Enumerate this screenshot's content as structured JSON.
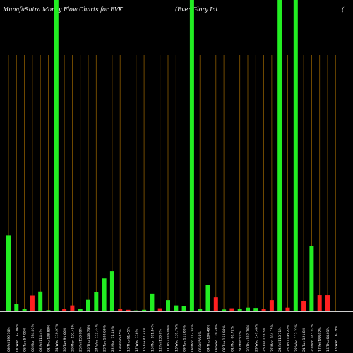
{
  "chart_data": {
    "type": "bar",
    "title_left": "MunafaSutra  Money Flow  Charts for EVK",
    "title_right": "(Ever Glory Int",
    "title_far": "(",
    "categories": [
      "09 Fri 195.76%",
      "07 Wed 142.08%",
      "06 Tue 57.09%",
      "05 Mon 194.05%",
      "02 Fri 114.4%",
      "01 Thu 138.89%",
      "31 Wed 119.97%",
      "30 Tue 91.66%",
      "29 Mon 120.45%",
      "26 Fri 158.08%",
      "25 Thu 103.73%",
      "24 Wed 113.44%",
      "23 Tue 180.69%",
      "22 Mon 71.46%",
      "19 Fri 96.65%",
      "18 Thu 61.45%",
      "17 Wed 116%",
      "16 Tue 47.37%",
      "15 Mon 101.84%",
      "12 Fri 138.6%",
      "11 Thu 116.06%",
      "10 Wed 131.76%",
      "09 Tue 111.83%",
      "08 Mon 113.94%",
      "05 Fri 56.8%",
      "04 Thu 184.49%",
      "03 Wed 120.48%",
      "02 Tue 153.92%",
      "01 Mon 80.72%",
      "31 Fri 65.9%",
      "30 Thu 117.76%",
      "29 Wed 147.46%",
      "28 Tue 176.3%",
      "27 Mon 104.75%",
      "24 Fri 118.71%",
      "23 Thu 193.27%",
      "22 Wed 113.22%",
      "21 Tue 121.8%",
      "20 Mon 183.97%",
      "17 Fri 188.02%",
      "16 Thu 64.01%",
      "15 Wed 167.9%"
    ],
    "values": [
      24.4,
      2.3,
      0.7,
      5.1,
      6.4,
      0.4,
      100,
      0.7,
      1.9,
      0.8,
      3.7,
      6.2,
      10.6,
      12.9,
      0.9,
      0.5,
      0.3,
      0.5,
      5.7,
      1.0,
      3.6,
      1.9,
      1.7,
      100,
      0.9,
      8.5,
      4.5,
      0.6,
      1.0,
      0.9,
      1.2,
      1.1,
      0.7,
      3.6,
      100,
      1.2,
      100,
      3.4,
      21.0,
      5.2,
      5.2,
      0
    ],
    "colors": [
      "green",
      "green",
      "green",
      "red",
      "green",
      "green",
      "green",
      "red",
      "red",
      "green",
      "green",
      "green",
      "green",
      "green",
      "red",
      "red",
      "green",
      "green",
      "green",
      "red",
      "green",
      "green",
      "green",
      "green",
      "green",
      "green",
      "red",
      "green",
      "red",
      "green",
      "green",
      "green",
      "red",
      "red",
      "green",
      "red",
      "green",
      "red",
      "green",
      "red",
      "red",
      "red"
    ],
    "ylim": [
      0,
      100
    ],
    "price_line": [],
    "colors_map": {
      "green": "#22ee22",
      "red": "#ff2020",
      "grid": "#8a5a00",
      "price": "#ffffff",
      "baseline": "#cfcfcf"
    },
    "grid": true
  }
}
